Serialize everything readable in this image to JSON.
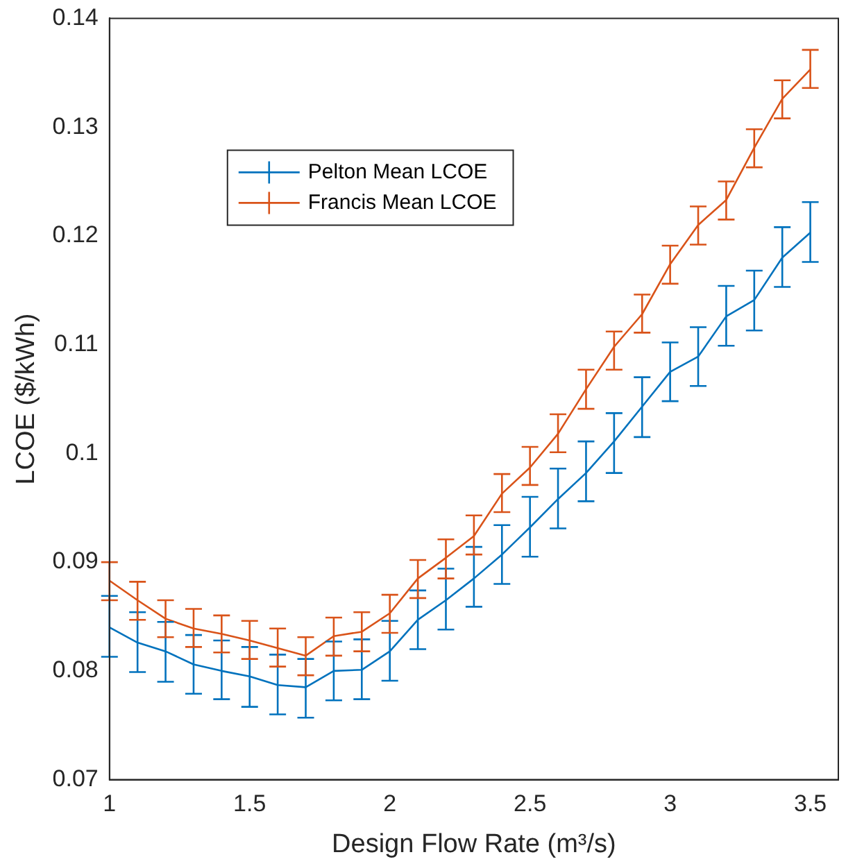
{
  "chart_data": {
    "type": "line",
    "xlabel": "Design Flow Rate (m³/s)",
    "ylabel": "LCOE ($/kWh)",
    "x": [
      1,
      1.1,
      1.2,
      1.3,
      1.4,
      1.5,
      1.6,
      1.7,
      1.8,
      1.9,
      2,
      2.1,
      2.2,
      2.3,
      2.4,
      2.5,
      2.6,
      2.7,
      2.8,
      2.9,
      3,
      3.1,
      3.2,
      3.3,
      3.4,
      3.5
    ],
    "series": [
      {
        "name": "Pelton Mean LCOE",
        "color": "#0072bd",
        "values": [
          0.084,
          0.0826,
          0.0818,
          0.0806,
          0.08,
          0.0795,
          0.0787,
          0.0785,
          0.08,
          0.0801,
          0.0818,
          0.0847,
          0.0865,
          0.0885,
          0.0907,
          0.0932,
          0.0958,
          0.0982,
          0.1011,
          0.1043,
          0.1075,
          0.1089,
          0.1126,
          0.1141,
          0.118,
          0.1203
        ],
        "errors": [
          [
            0.0813,
            0.0869
          ],
          [
            0.0799,
            0.0854
          ],
          [
            0.079,
            0.0845
          ],
          [
            0.0779,
            0.0833
          ],
          [
            0.0774,
            0.0828
          ],
          [
            0.0767,
            0.0822
          ],
          [
            0.076,
            0.0815
          ],
          [
            0.0757,
            0.0811
          ],
          [
            0.0773,
            0.0827
          ],
          [
            0.0774,
            0.0829
          ],
          [
            0.0791,
            0.0846
          ],
          [
            0.082,
            0.0874
          ],
          [
            0.0838,
            0.0894
          ],
          [
            0.0859,
            0.0914
          ],
          [
            0.088,
            0.0934
          ],
          [
            0.0905,
            0.096
          ],
          [
            0.0931,
            0.0986
          ],
          [
            0.0956,
            0.1011
          ],
          [
            0.0982,
            0.1037
          ],
          [
            0.1015,
            0.107
          ],
          [
            0.1048,
            0.1102
          ],
          [
            0.1062,
            0.1116
          ],
          [
            0.1099,
            0.1154
          ],
          [
            0.1113,
            0.1168
          ],
          [
            0.1153,
            0.1208
          ],
          [
            0.1176,
            0.1231
          ]
        ]
      },
      {
        "name": "Francis Mean LCOE",
        "color": "#d95319",
        "values": [
          0.0883,
          0.0865,
          0.0848,
          0.0839,
          0.0834,
          0.0828,
          0.0821,
          0.0814,
          0.0832,
          0.0836,
          0.0853,
          0.0885,
          0.0904,
          0.0924,
          0.0963,
          0.0987,
          0.1018,
          0.1059,
          0.1098,
          0.1128,
          0.1174,
          0.121,
          0.1233,
          0.1281,
          0.1326,
          0.1353
        ],
        "errors": [
          [
            0.0865,
            0.09
          ],
          [
            0.0847,
            0.0882
          ],
          [
            0.0831,
            0.0865
          ],
          [
            0.0822,
            0.0857
          ],
          [
            0.0817,
            0.0851
          ],
          [
            0.0811,
            0.0846
          ],
          [
            0.0804,
            0.0839
          ],
          [
            0.0796,
            0.0831
          ],
          [
            0.0814,
            0.0849
          ],
          [
            0.0818,
            0.0854
          ],
          [
            0.0835,
            0.087
          ],
          [
            0.0867,
            0.0902
          ],
          [
            0.0885,
            0.0921
          ],
          [
            0.0907,
            0.0943
          ],
          [
            0.0946,
            0.0981
          ],
          [
            0.0971,
            0.1006
          ],
          [
            0.1001,
            0.1036
          ],
          [
            0.1041,
            0.1077
          ],
          [
            0.1077,
            0.1112
          ],
          [
            0.1111,
            0.1146
          ],
          [
            0.1156,
            0.1191
          ],
          [
            0.1192,
            0.1227
          ],
          [
            0.1215,
            0.125
          ],
          [
            0.1263,
            0.1298
          ],
          [
            0.1308,
            0.1343
          ],
          [
            0.1336,
            0.1371
          ]
        ]
      }
    ],
    "xlim": [
      1,
      3.6
    ],
    "xticks": [
      1,
      1.5,
      2,
      2.5,
      3,
      3.5
    ],
    "ylim": [
      0.07,
      0.14
    ],
    "yticks": [
      0.07,
      0.08,
      0.09,
      0.1,
      0.11,
      0.12,
      0.13,
      0.14
    ],
    "grid": false,
    "legend": "top left",
    "marker": "none",
    "line_style": "solid"
  }
}
